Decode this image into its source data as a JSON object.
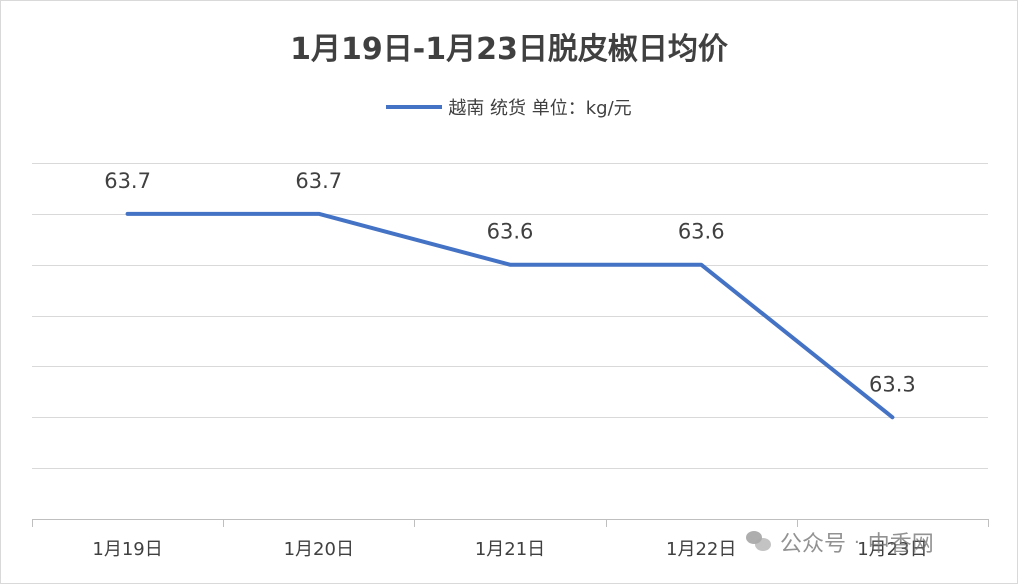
{
  "chart_data": {
    "type": "line",
    "title": "1月19日-1月23日脱皮椒日均价",
    "categories": [
      "1月19日",
      "1月20日",
      "1月21日",
      "1月22日",
      "1月23日"
    ],
    "series": [
      {
        "name": "越南 统货 单位：kg/元",
        "values": [
          63.7,
          63.7,
          63.6,
          63.6,
          63.3
        ],
        "labels": [
          "63.7",
          "63.7",
          "63.6",
          "63.6",
          "63.3"
        ],
        "color": "#4472c4"
      }
    ],
    "ylim": [
      63.1,
      63.8
    ],
    "grid": true,
    "legend": "top-center"
  },
  "watermark": {
    "text": "公众号",
    "separator": "·",
    "source": "中香网"
  }
}
